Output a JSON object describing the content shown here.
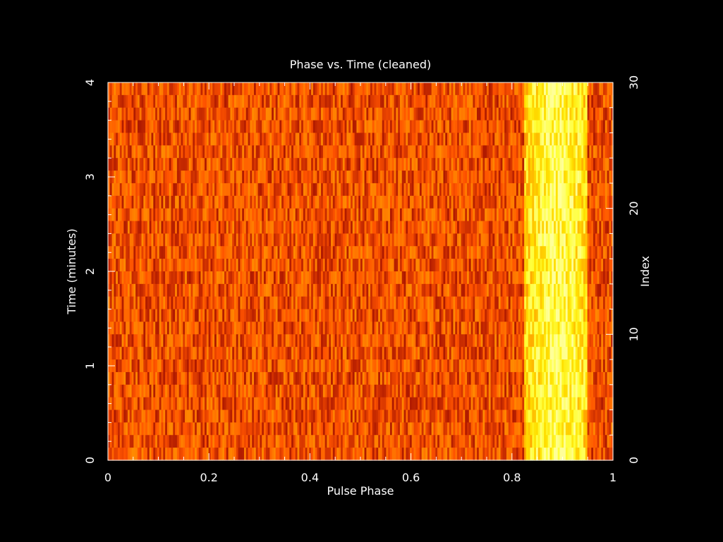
{
  "chart_data": {
    "type": "heatmap",
    "title": "Phase vs. Time (cleaned)",
    "xlabel": "Pulse Phase",
    "ylabel": "Time (minutes)",
    "y2label": "Index",
    "xlim": [
      0,
      1
    ],
    "ylim": [
      0,
      4
    ],
    "y2lim": [
      0,
      30
    ],
    "x_ticks": [
      "0",
      "0.2",
      "0.4",
      "0.6",
      "0.8",
      "1"
    ],
    "y_ticks": [
      "0",
      "1",
      "2",
      "3",
      "4"
    ],
    "y2_ticks": [
      "0",
      "10",
      "20",
      "30"
    ],
    "n_phase_bins": 256,
    "n_subints": 30,
    "colormap": "heat (dark red → orange → yellow → white)",
    "pulse": {
      "phase_start": 0.825,
      "phase_end": 0.95,
      "peak_phase": 0.89,
      "relative_intensity": 1.0,
      "background_intensity": 0.45
    },
    "grid": false,
    "background": "#000000",
    "foreground": "#ffffff"
  }
}
